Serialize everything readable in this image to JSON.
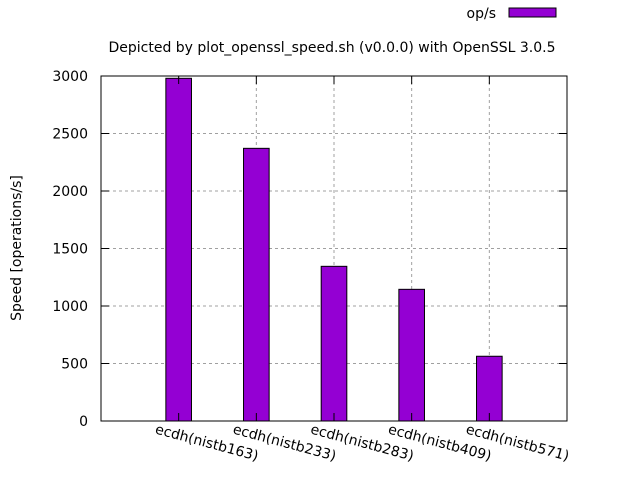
{
  "chart_data": {
    "type": "bar",
    "title": "Depicted by plot_openssl_speed.sh (v0.0.0) with OpenSSL 3.0.5",
    "xlabel": "",
    "ylabel": "Speed [operations/s]",
    "ylim": [
      0,
      3000
    ],
    "yticks": [
      0,
      500,
      1000,
      1500,
      2000,
      2500,
      3000
    ],
    "grid": true,
    "legend_position": "top-right",
    "categories": [
      "ecdh(nistb163)",
      "ecdh(nistb233)",
      "ecdh(nistb283)",
      "ecdh(nistb409)",
      "ecdh(nistb571)"
    ],
    "series": [
      {
        "name": "op/s",
        "color": "#9400d3",
        "values": [
          2980,
          2371,
          1345,
          1145,
          563
        ]
      }
    ]
  }
}
